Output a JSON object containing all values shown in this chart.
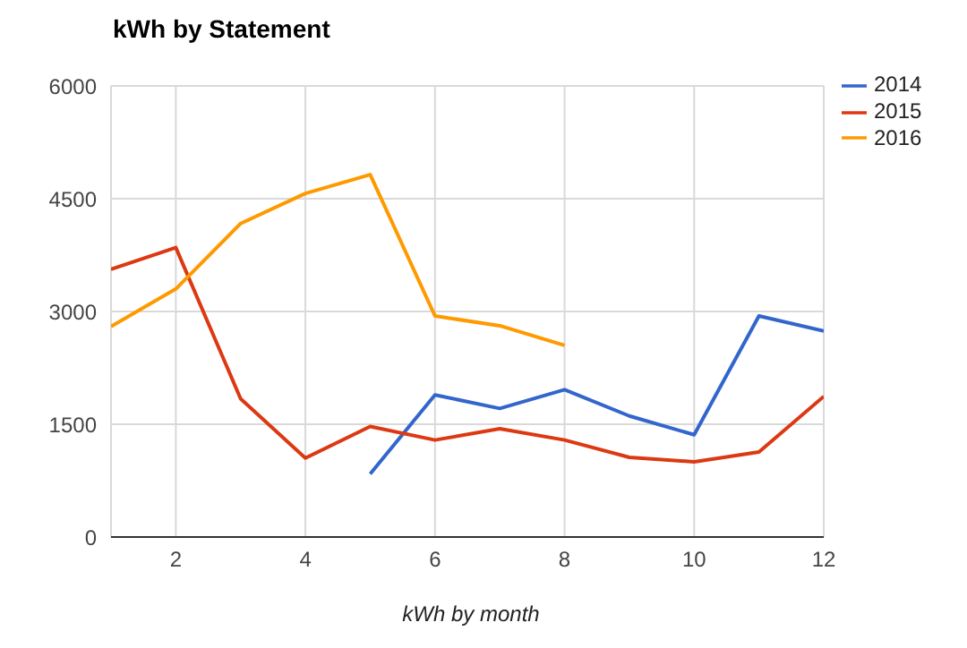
{
  "chart_data": {
    "type": "line",
    "title": "kWh by Statement",
    "xlabel": "kWh by month",
    "x": [
      1,
      2,
      3,
      4,
      5,
      6,
      7,
      8,
      9,
      10,
      11,
      12
    ],
    "series": [
      {
        "name": "2014",
        "color": "#3366cc",
        "values": [
          null,
          null,
          null,
          null,
          840,
          1890,
          1710,
          1960,
          1610,
          1360,
          2940,
          2740
        ]
      },
      {
        "name": "2015",
        "color": "#dc3912",
        "values": [
          3560,
          3850,
          1840,
          1050,
          1470,
          1290,
          1440,
          1290,
          1060,
          1000,
          1130,
          1870
        ]
      },
      {
        "name": "2016",
        "color": "#ff9900",
        "values": [
          2800,
          3300,
          4170,
          4570,
          4820,
          2940,
          2810,
          2550,
          null,
          null,
          null,
          null
        ]
      }
    ],
    "xlim": [
      1,
      12
    ],
    "xticks": [
      2,
      4,
      6,
      8,
      10,
      12
    ],
    "ylim": [
      0,
      6000
    ],
    "yticks": [
      0,
      1500,
      3000,
      4500,
      6000
    ],
    "grid": true,
    "legend": "top right",
    "marker": "none"
  }
}
